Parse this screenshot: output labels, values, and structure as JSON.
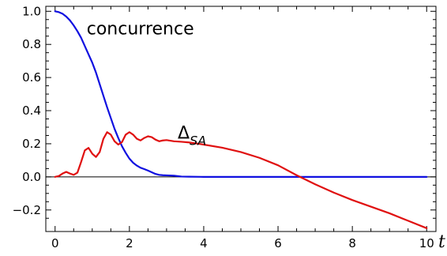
{
  "chart_data": {
    "type": "line",
    "xlabel": "t",
    "ylabel": "",
    "xlim": [
      -0.25,
      10.25
    ],
    "ylim": [
      -0.33,
      1.03
    ],
    "x_ticks": [
      0,
      2,
      4,
      6,
      8,
      10
    ],
    "x_tick_labels": [
      "0",
      "2",
      "4",
      "6",
      "8",
      "10"
    ],
    "y_ticks": [
      -0.2,
      0.0,
      0.2,
      0.4,
      0.6,
      0.8,
      1.0
    ],
    "y_tick_labels": [
      "−0.2",
      "0.0",
      "0.2",
      "0.4",
      "0.6",
      "0.8",
      "1.0"
    ],
    "grid": false,
    "zero_line": true,
    "annotations": [
      {
        "text": "concurrence",
        "x": 0.85,
        "y": 0.86
      },
      {
        "text": "Δ",
        "sub": "SA",
        "x": 3.3,
        "y": 0.23
      }
    ],
    "series": [
      {
        "color": "#1010e0",
        "points": [
          [
            0,
            1.0
          ],
          [
            0.1,
            0.995
          ],
          [
            0.2,
            0.985
          ],
          [
            0.3,
            0.968
          ],
          [
            0.4,
            0.945
          ],
          [
            0.5,
            0.915
          ],
          [
            0.6,
            0.88
          ],
          [
            0.7,
            0.84
          ],
          [
            0.8,
            0.79
          ],
          [
            0.9,
            0.74
          ],
          [
            1.0,
            0.69
          ],
          [
            1.1,
            0.63
          ],
          [
            1.2,
            0.56
          ],
          [
            1.3,
            0.49
          ],
          [
            1.4,
            0.42
          ],
          [
            1.5,
            0.355
          ],
          [
            1.6,
            0.29
          ],
          [
            1.7,
            0.235
          ],
          [
            1.8,
            0.185
          ],
          [
            1.9,
            0.145
          ],
          [
            2.0,
            0.11
          ],
          [
            2.1,
            0.085
          ],
          [
            2.2,
            0.068
          ],
          [
            2.3,
            0.055
          ],
          [
            2.4,
            0.047
          ],
          [
            2.5,
            0.038
          ],
          [
            2.6,
            0.028
          ],
          [
            2.7,
            0.018
          ],
          [
            2.8,
            0.012
          ],
          [
            2.9,
            0.01
          ],
          [
            3.0,
            0.009
          ],
          [
            3.2,
            0.007
          ],
          [
            3.4,
            0.002
          ],
          [
            3.6,
            0.001
          ],
          [
            4.0,
            0.0
          ],
          [
            5.0,
            0.0
          ],
          [
            6.0,
            0.0
          ],
          [
            7.0,
            0.0
          ],
          [
            8.0,
            0.0
          ],
          [
            9.0,
            0.0
          ],
          [
            10.0,
            0.0
          ]
        ]
      },
      {
        "color": "#e01010",
        "points": [
          [
            0,
            0.0
          ],
          [
            0.1,
            0.005
          ],
          [
            0.2,
            0.02
          ],
          [
            0.3,
            0.03
          ],
          [
            0.4,
            0.02
          ],
          [
            0.5,
            0.012
          ],
          [
            0.6,
            0.025
          ],
          [
            0.7,
            0.09
          ],
          [
            0.8,
            0.16
          ],
          [
            0.9,
            0.175
          ],
          [
            1.0,
            0.14
          ],
          [
            1.1,
            0.12
          ],
          [
            1.2,
            0.15
          ],
          [
            1.3,
            0.23
          ],
          [
            1.4,
            0.27
          ],
          [
            1.5,
            0.255
          ],
          [
            1.6,
            0.215
          ],
          [
            1.7,
            0.195
          ],
          [
            1.8,
            0.21
          ],
          [
            1.9,
            0.255
          ],
          [
            2.0,
            0.27
          ],
          [
            2.1,
            0.255
          ],
          [
            2.2,
            0.23
          ],
          [
            2.3,
            0.22
          ],
          [
            2.4,
            0.235
          ],
          [
            2.5,
            0.245
          ],
          [
            2.6,
            0.24
          ],
          [
            2.7,
            0.225
          ],
          [
            2.8,
            0.215
          ],
          [
            2.9,
            0.22
          ],
          [
            3.0,
            0.222
          ],
          [
            3.2,
            0.215
          ],
          [
            3.4,
            0.212
          ],
          [
            3.6,
            0.208
          ],
          [
            3.8,
            0.202
          ],
          [
            4.0,
            0.195
          ],
          [
            4.5,
            0.176
          ],
          [
            5.0,
            0.15
          ],
          [
            5.5,
            0.115
          ],
          [
            6.0,
            0.07
          ],
          [
            6.5,
            0.01
          ],
          [
            7.0,
            -0.045
          ],
          [
            7.5,
            -0.095
          ],
          [
            8.0,
            -0.14
          ],
          [
            8.5,
            -0.18
          ],
          [
            9.0,
            -0.22
          ],
          [
            9.5,
            -0.265
          ],
          [
            10.0,
            -0.31
          ]
        ]
      }
    ]
  }
}
